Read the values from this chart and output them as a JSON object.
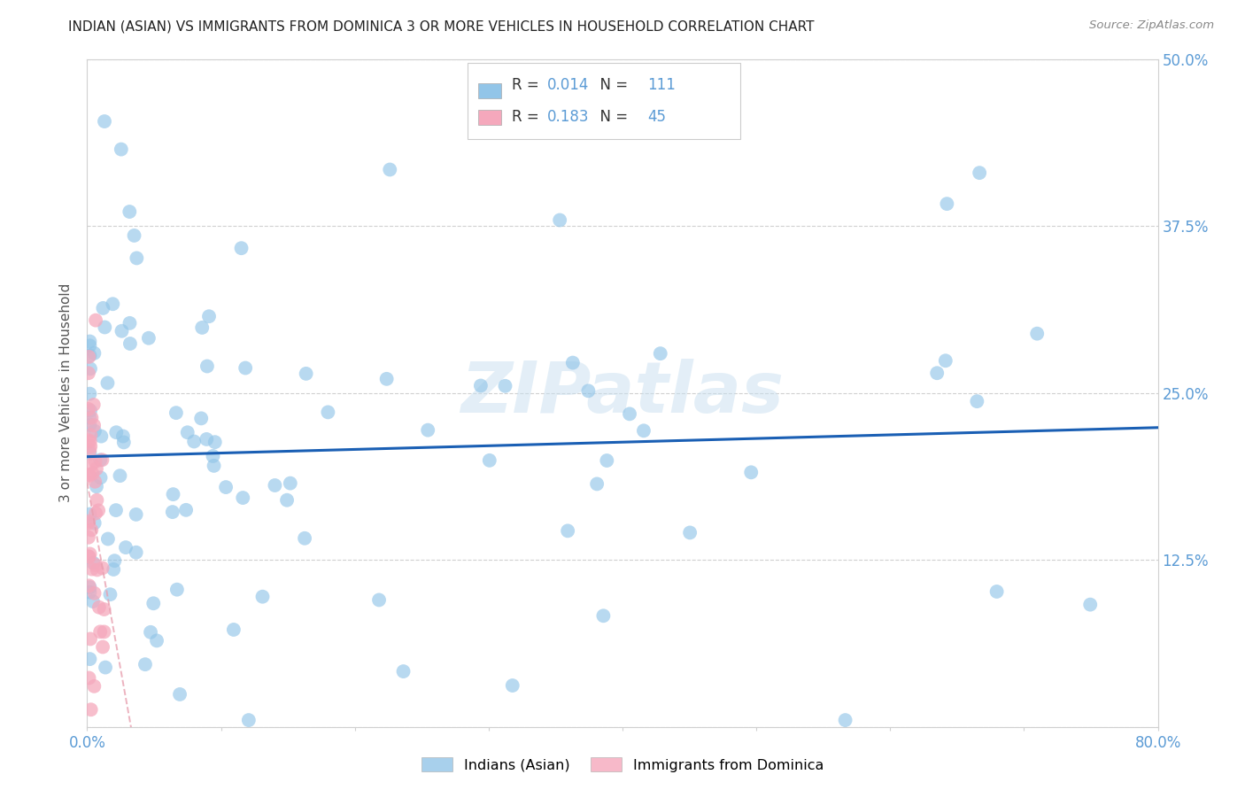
{
  "title": "INDIAN (ASIAN) VS IMMIGRANTS FROM DOMINICA 3 OR MORE VEHICLES IN HOUSEHOLD CORRELATION CHART",
  "source": "Source: ZipAtlas.com",
  "ylabel": "3 or more Vehicles in Household",
  "xlim": [
    0.0,
    0.8
  ],
  "ylim": [
    0.0,
    0.5
  ],
  "blue_R": 0.014,
  "blue_N": 111,
  "pink_R": 0.183,
  "pink_N": 45,
  "blue_color": "#92c5e8",
  "pink_color": "#f5a8bc",
  "blue_line_color": "#1a5fb4",
  "pink_line_color": "#e8a0b0",
  "axis_color": "#5b9bd5",
  "title_color": "#222222",
  "source_color": "#888888",
  "ylabel_color": "#555555",
  "grid_color": "#d0d0d0",
  "watermark_text": "ZIPatlas",
  "legend_label_blue": "Indians (Asian)",
  "legend_label_pink": "Immigrants from Dominica"
}
